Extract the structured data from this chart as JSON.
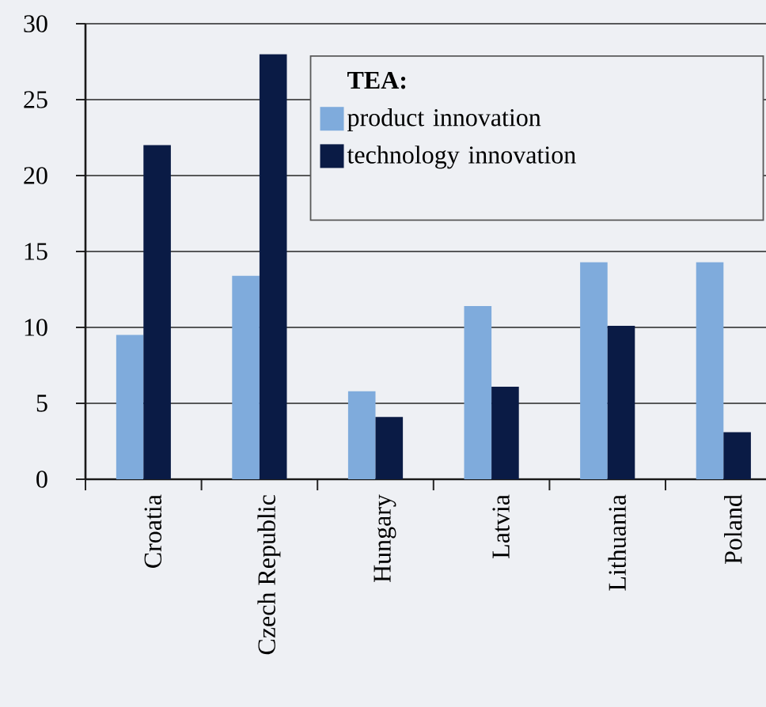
{
  "chart_data": {
    "type": "bar",
    "categories": [
      "Croatia",
      "Czech Republic",
      "Hungary",
      "Latvia",
      "Lithuania",
      "Poland"
    ],
    "legend_title": "TEA:",
    "series": [
      {
        "name": "product innovation",
        "color": "#7fabdc",
        "values": [
          9.5,
          13.4,
          5.8,
          11.4,
          14.3,
          14.3
        ]
      },
      {
        "name": "technology innovation",
        "color": "#0a1b45",
        "values": [
          22,
          28,
          4.1,
          6.1,
          10.1,
          3.1
        ]
      }
    ],
    "ylim": [
      0,
      30
    ],
    "yticks": [
      0,
      5,
      10,
      15,
      20,
      25,
      30
    ],
    "grid": "y",
    "legend": "top right"
  }
}
